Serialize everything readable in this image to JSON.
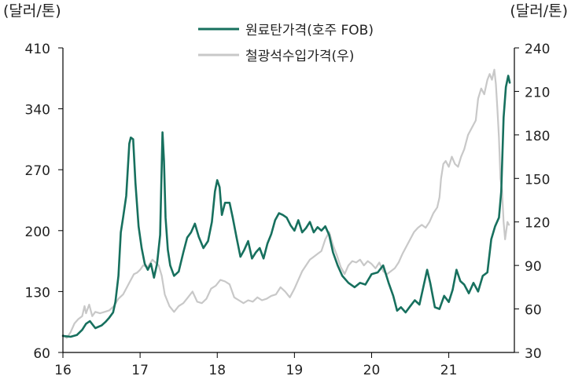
{
  "chart_data": {
    "type": "line",
    "left_axis_unit": "(달러/톤)",
    "right_axis_unit": "(달러/톤)",
    "x_ticks": [
      "16",
      "17",
      "18",
      "19",
      "20",
      "21"
    ],
    "x_range": [
      16.0,
      21.85
    ],
    "y_left": {
      "ticks": [
        "410",
        "340",
        "270",
        "200",
        "130",
        "60"
      ],
      "range": [
        60,
        410
      ]
    },
    "y_right": {
      "ticks": [
        "240",
        "210",
        "180",
        "150",
        "120",
        "90",
        "60",
        "30"
      ],
      "range": [
        30,
        240
      ]
    },
    "grid": false,
    "legend_position": "top-center",
    "colors": {
      "coal": "#17705e",
      "ore": "#c8c8c8",
      "axis": "#000000",
      "text": "#222222"
    },
    "series": [
      {
        "name": "원료탄가격(호주 FOB)",
        "axis": "left",
        "color": "#17705e",
        "points": [
          [
            16.0,
            79
          ],
          [
            16.1,
            78
          ],
          [
            16.18,
            80
          ],
          [
            16.25,
            86
          ],
          [
            16.3,
            93
          ],
          [
            16.35,
            96
          ],
          [
            16.42,
            88
          ],
          [
            16.5,
            91
          ],
          [
            16.55,
            95
          ],
          [
            16.6,
            100
          ],
          [
            16.65,
            106
          ],
          [
            16.68,
            118
          ],
          [
            16.72,
            148
          ],
          [
            16.75,
            198
          ],
          [
            16.78,
            215
          ],
          [
            16.82,
            240
          ],
          [
            16.86,
            300
          ],
          [
            16.88,
            307
          ],
          [
            16.91,
            305
          ],
          [
            16.94,
            255
          ],
          [
            16.98,
            205
          ],
          [
            17.02,
            180
          ],
          [
            17.06,
            162
          ],
          [
            17.1,
            155
          ],
          [
            17.14,
            162
          ],
          [
            17.18,
            146
          ],
          [
            17.22,
            162
          ],
          [
            17.26,
            195
          ],
          [
            17.29,
            313
          ],
          [
            17.31,
            280
          ],
          [
            17.33,
            215
          ],
          [
            17.36,
            178
          ],
          [
            17.39,
            160
          ],
          [
            17.44,
            148
          ],
          [
            17.5,
            153
          ],
          [
            17.56,
            175
          ],
          [
            17.61,
            192
          ],
          [
            17.66,
            198
          ],
          [
            17.71,
            208
          ],
          [
            17.76,
            193
          ],
          [
            17.82,
            180
          ],
          [
            17.88,
            188
          ],
          [
            17.93,
            210
          ],
          [
            17.97,
            245
          ],
          [
            18.0,
            258
          ],
          [
            18.03,
            250
          ],
          [
            18.06,
            218
          ],
          [
            18.1,
            232
          ],
          [
            18.16,
            232
          ],
          [
            18.2,
            215
          ],
          [
            18.25,
            192
          ],
          [
            18.3,
            170
          ],
          [
            18.35,
            178
          ],
          [
            18.4,
            188
          ],
          [
            18.45,
            168
          ],
          [
            18.5,
            175
          ],
          [
            18.55,
            180
          ],
          [
            18.6,
            168
          ],
          [
            18.65,
            185
          ],
          [
            18.7,
            196
          ],
          [
            18.75,
            212
          ],
          [
            18.8,
            220
          ],
          [
            18.85,
            218
          ],
          [
            18.9,
            215
          ],
          [
            18.95,
            206
          ],
          [
            19.0,
            200
          ],
          [
            19.05,
            212
          ],
          [
            19.1,
            198
          ],
          [
            19.15,
            203
          ],
          [
            19.2,
            210
          ],
          [
            19.25,
            198
          ],
          [
            19.3,
            204
          ],
          [
            19.35,
            200
          ],
          [
            19.4,
            205
          ],
          [
            19.45,
            195
          ],
          [
            19.5,
            175
          ],
          [
            19.56,
            160
          ],
          [
            19.62,
            148
          ],
          [
            19.7,
            140
          ],
          [
            19.78,
            135
          ],
          [
            19.85,
            140
          ],
          [
            19.92,
            138
          ],
          [
            20.0,
            150
          ],
          [
            20.08,
            152
          ],
          [
            20.15,
            160
          ],
          [
            20.22,
            140
          ],
          [
            20.28,
            125
          ],
          [
            20.33,
            108
          ],
          [
            20.38,
            112
          ],
          [
            20.44,
            106
          ],
          [
            20.5,
            113
          ],
          [
            20.56,
            120
          ],
          [
            20.62,
            115
          ],
          [
            20.67,
            135
          ],
          [
            20.72,
            155
          ],
          [
            20.76,
            140
          ],
          [
            20.82,
            112
          ],
          [
            20.88,
            110
          ],
          [
            20.94,
            125
          ],
          [
            21.0,
            118
          ],
          [
            21.05,
            132
          ],
          [
            21.1,
            155
          ],
          [
            21.15,
            142
          ],
          [
            21.2,
            138
          ],
          [
            21.26,
            128
          ],
          [
            21.32,
            140
          ],
          [
            21.38,
            130
          ],
          [
            21.44,
            148
          ],
          [
            21.5,
            152
          ],
          [
            21.55,
            190
          ],
          [
            21.6,
            205
          ],
          [
            21.65,
            215
          ],
          [
            21.68,
            245
          ],
          [
            21.71,
            330
          ],
          [
            21.74,
            365
          ],
          [
            21.77,
            378
          ],
          [
            21.79,
            370
          ]
        ]
      },
      {
        "name": "철광석수입가격(우)",
        "axis": "right",
        "color": "#c8c8c8",
        "points": [
          [
            16.0,
            42
          ],
          [
            16.05,
            40
          ],
          [
            16.1,
            44
          ],
          [
            16.15,
            50
          ],
          [
            16.2,
            53
          ],
          [
            16.25,
            55
          ],
          [
            16.28,
            62
          ],
          [
            16.3,
            57
          ],
          [
            16.34,
            63
          ],
          [
            16.38,
            55
          ],
          [
            16.42,
            58
          ],
          [
            16.48,
            57
          ],
          [
            16.54,
            58
          ],
          [
            16.6,
            59
          ],
          [
            16.66,
            62
          ],
          [
            16.72,
            67
          ],
          [
            16.78,
            70
          ],
          [
            16.84,
            76
          ],
          [
            16.88,
            80
          ],
          [
            16.92,
            84
          ],
          [
            16.96,
            85
          ],
          [
            17.0,
            87
          ],
          [
            17.04,
            90
          ],
          [
            17.1,
            89
          ],
          [
            17.16,
            94
          ],
          [
            17.2,
            92
          ],
          [
            17.24,
            90
          ],
          [
            17.28,
            83
          ],
          [
            17.32,
            70
          ],
          [
            17.38,
            62
          ],
          [
            17.44,
            58
          ],
          [
            17.5,
            62
          ],
          [
            17.56,
            64
          ],
          [
            17.62,
            68
          ],
          [
            17.68,
            72
          ],
          [
            17.74,
            65
          ],
          [
            17.8,
            64
          ],
          [
            17.86,
            67
          ],
          [
            17.92,
            74
          ],
          [
            17.98,
            76
          ],
          [
            18.04,
            80
          ],
          [
            18.1,
            79
          ],
          [
            18.16,
            77
          ],
          [
            18.22,
            68
          ],
          [
            18.28,
            66
          ],
          [
            18.34,
            64
          ],
          [
            18.4,
            66
          ],
          [
            18.46,
            65
          ],
          [
            18.52,
            68
          ],
          [
            18.58,
            66
          ],
          [
            18.64,
            67
          ],
          [
            18.7,
            69
          ],
          [
            18.76,
            70
          ],
          [
            18.82,
            75
          ],
          [
            18.88,
            72
          ],
          [
            18.94,
            68
          ],
          [
            19.0,
            74
          ],
          [
            19.05,
            80
          ],
          [
            19.1,
            86
          ],
          [
            19.15,
            90
          ],
          [
            19.2,
            94
          ],
          [
            19.25,
            96
          ],
          [
            19.3,
            98
          ],
          [
            19.35,
            100
          ],
          [
            19.4,
            108
          ],
          [
            19.45,
            113
          ],
          [
            19.5,
            104
          ],
          [
            19.55,
            97
          ],
          [
            19.6,
            89
          ],
          [
            19.65,
            84
          ],
          [
            19.7,
            90
          ],
          [
            19.75,
            93
          ],
          [
            19.8,
            92
          ],
          [
            19.85,
            94
          ],
          [
            19.9,
            90
          ],
          [
            19.95,
            93
          ],
          [
            20.0,
            91
          ],
          [
            20.05,
            88
          ],
          [
            20.1,
            92
          ],
          [
            20.15,
            86
          ],
          [
            20.2,
            84
          ],
          [
            20.25,
            86
          ],
          [
            20.3,
            88
          ],
          [
            20.35,
            92
          ],
          [
            20.4,
            98
          ],
          [
            20.45,
            103
          ],
          [
            20.5,
            108
          ],
          [
            20.55,
            113
          ],
          [
            20.6,
            116
          ],
          [
            20.65,
            118
          ],
          [
            20.7,
            116
          ],
          [
            20.75,
            120
          ],
          [
            20.8,
            126
          ],
          [
            20.85,
            130
          ],
          [
            20.88,
            137
          ],
          [
            20.9,
            150
          ],
          [
            20.93,
            160
          ],
          [
            20.96,
            162
          ],
          [
            21.0,
            158
          ],
          [
            21.04,
            165
          ],
          [
            21.08,
            160
          ],
          [
            21.12,
            158
          ],
          [
            21.16,
            165
          ],
          [
            21.2,
            170
          ],
          [
            21.25,
            180
          ],
          [
            21.3,
            185
          ],
          [
            21.35,
            190
          ],
          [
            21.38,
            205
          ],
          [
            21.42,
            212
          ],
          [
            21.46,
            208
          ],
          [
            21.5,
            218
          ],
          [
            21.53,
            222
          ],
          [
            21.56,
            218
          ],
          [
            21.59,
            225
          ],
          [
            21.61,
            215
          ],
          [
            21.63,
            198
          ],
          [
            21.65,
            178
          ],
          [
            21.67,
            150
          ],
          [
            21.69,
            142
          ],
          [
            21.71,
            120
          ],
          [
            21.73,
            108
          ],
          [
            21.76,
            120
          ],
          [
            21.78,
            118
          ]
        ]
      }
    ]
  }
}
